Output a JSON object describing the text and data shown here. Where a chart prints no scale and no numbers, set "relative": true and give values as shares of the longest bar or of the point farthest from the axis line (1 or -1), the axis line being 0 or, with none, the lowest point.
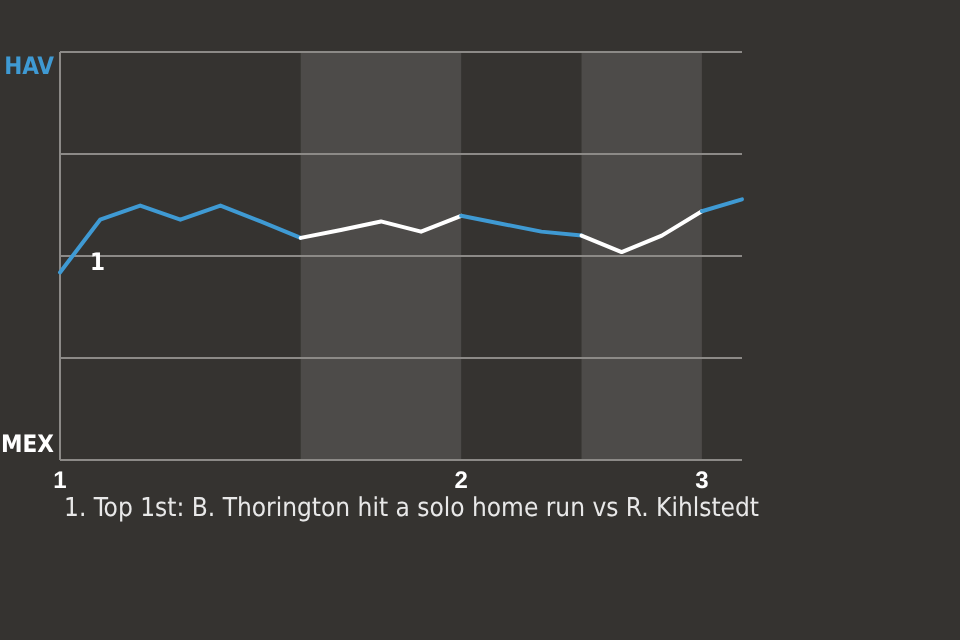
{
  "chart_data": {
    "type": "line",
    "relative": true,
    "categories": [
      "1",
      null,
      null,
      null,
      null,
      null,
      null,
      null,
      null,
      null,
      "2",
      null,
      null,
      null,
      null,
      null,
      "3",
      null
    ],
    "marker": "none",
    "line_style": "solid",
    "series": [
      {
        "color": "#3f9ad3",
        "values": [
          -0.29,
          0.64,
          0.89,
          0.64,
          0.89,
          0.61,
          0.32,
          null,
          null,
          null,
          null,
          null,
          null,
          null,
          null,
          null,
          null,
          null
        ]
      },
      {
        "color": "#ffffff",
        "values": [
          null,
          null,
          null,
          null,
          null,
          null,
          0.32,
          0.46,
          0.61,
          0.43,
          0.71,
          null,
          null,
          null,
          null,
          null,
          null,
          null
        ]
      },
      {
        "color": "#3f9ad3",
        "values": [
          null,
          null,
          null,
          null,
          null,
          null,
          null,
          null,
          null,
          null,
          0.71,
          0.57,
          0.43,
          0.36,
          null,
          null,
          null,
          null
        ]
      },
      {
        "color": "#ffffff",
        "values": [
          null,
          null,
          null,
          null,
          null,
          null,
          null,
          null,
          null,
          null,
          null,
          null,
          null,
          0.36,
          0.07,
          0.36,
          0.79,
          null
        ]
      },
      {
        "color": "#3f9ad3",
        "values": [
          null,
          null,
          null,
          null,
          null,
          null,
          null,
          null,
          null,
          null,
          null,
          null,
          null,
          null,
          null,
          null,
          0.79,
          1
        ]
      }
    ],
    "annotations": [
      "HAV",
      "MEX",
      {
        "text": "1",
        "y": 0.64
      },
      "1. Top 1st: B. Thorington hit a solo home run vs R. Kihlstedt"
    ]
  }
}
